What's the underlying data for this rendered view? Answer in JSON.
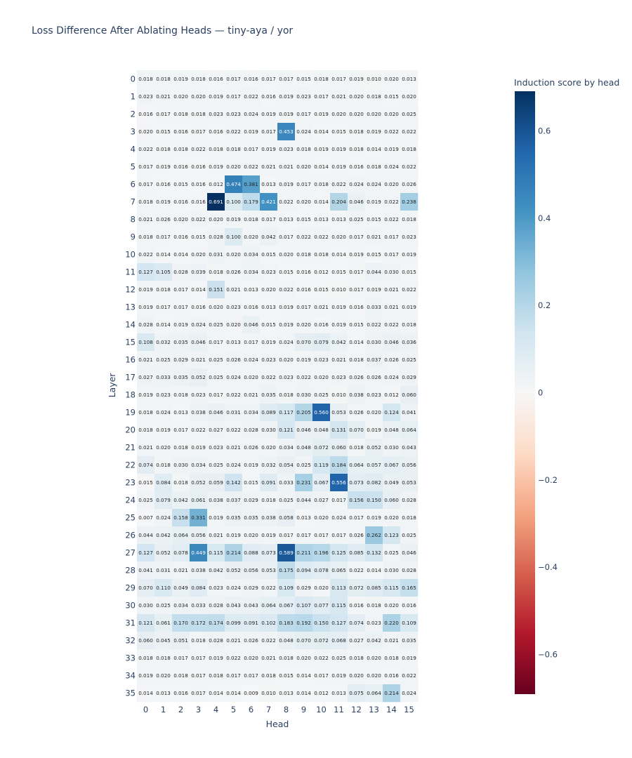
{
  "chart_data": {
    "type": "heatmap",
    "title": "Loss Difference After Ablating Heads — tiny-aya / yor",
    "xlabel": "Head",
    "ylabel": "Layer",
    "colorbar_title": "Induction score by head",
    "colorscale": "RdBu",
    "zmin": -0.691,
    "zmax": 0.691,
    "colorbar_ticks": [
      "0.6",
      "0.4",
      "0.2",
      "0",
      "−0.2",
      "−0.4",
      "−0.6"
    ],
    "colorbar_tick_values": [
      0.6,
      0.4,
      0.2,
      0,
      -0.2,
      -0.4,
      -0.6
    ],
    "x": [
      "0",
      "1",
      "2",
      "3",
      "4",
      "5",
      "6",
      "7",
      "8",
      "9",
      "10",
      "11",
      "12",
      "13",
      "14",
      "15"
    ],
    "y": [
      "0",
      "1",
      "2",
      "3",
      "4",
      "5",
      "6",
      "7",
      "8",
      "9",
      "10",
      "11",
      "12",
      "13",
      "14",
      "15",
      "16",
      "17",
      "18",
      "19",
      "20",
      "21",
      "22",
      "23",
      "24",
      "25",
      "26",
      "27",
      "28",
      "29",
      "30",
      "31",
      "32",
      "33",
      "34",
      "35"
    ],
    "z": [
      [
        0.018,
        0.018,
        0.019,
        0.018,
        0.016,
        0.017,
        0.016,
        0.017,
        0.017,
        0.015,
        0.018,
        0.017,
        0.019,
        0.01,
        0.02,
        0.013
      ],
      [
        0.023,
        0.021,
        0.02,
        0.02,
        0.019,
        0.017,
        0.022,
        0.016,
        0.019,
        0.023,
        0.017,
        0.021,
        0.02,
        0.018,
        0.015,
        0.02
      ],
      [
        0.016,
        0.017,
        0.018,
        0.018,
        0.023,
        0.023,
        0.024,
        0.019,
        0.019,
        0.017,
        0.019,
        0.02,
        0.02,
        0.02,
        0.02,
        0.025
      ],
      [
        0.02,
        0.015,
        0.016,
        0.017,
        0.016,
        0.022,
        0.019,
        0.017,
        0.453,
        0.024,
        0.014,
        0.015,
        0.018,
        0.019,
        0.022,
        0.022
      ],
      [
        0.022,
        0.018,
        0.018,
        0.022,
        0.018,
        0.018,
        0.017,
        0.019,
        0.023,
        0.018,
        0.019,
        0.019,
        0.018,
        0.014,
        0.019,
        0.018
      ],
      [
        0.017,
        0.019,
        0.016,
        0.016,
        0.019,
        0.02,
        0.022,
        0.021,
        0.021,
        0.02,
        0.014,
        0.019,
        0.016,
        0.018,
        0.024,
        0.022
      ],
      [
        0.017,
        0.016,
        0.015,
        0.016,
        0.012,
        0.474,
        0.381,
        0.013,
        0.019,
        0.017,
        0.018,
        0.022,
        0.024,
        0.024,
        0.02,
        0.026
      ],
      [
        0.018,
        0.019,
        0.016,
        0.016,
        0.691,
        0.1,
        0.179,
        0.421,
        0.022,
        0.02,
        0.014,
        0.204,
        0.046,
        0.019,
        0.022,
        0.238
      ],
      [
        0.021,
        0.026,
        0.02,
        0.022,
        0.02,
        0.019,
        0.018,
        0.017,
        0.013,
        0.015,
        0.013,
        0.013,
        0.025,
        0.015,
        0.022,
        0.018
      ],
      [
        0.018,
        0.017,
        0.016,
        0.015,
        0.028,
        0.1,
        0.02,
        0.042,
        0.017,
        0.022,
        0.022,
        0.02,
        0.017,
        0.021,
        0.017,
        0.023
      ],
      [
        0.022,
        0.014,
        0.014,
        0.02,
        0.031,
        0.02,
        0.034,
        0.015,
        0.02,
        0.018,
        0.018,
        0.014,
        0.019,
        0.015,
        0.017,
        0.019
      ],
      [
        0.127,
        0.105,
        0.028,
        0.039,
        0.018,
        0.026,
        0.034,
        0.023,
        0.015,
        0.016,
        0.012,
        0.015,
        0.017,
        0.044,
        0.03,
        0.015
      ],
      [
        0.019,
        0.018,
        0.017,
        0.014,
        0.151,
        0.021,
        0.013,
        0.02,
        0.022,
        0.016,
        0.015,
        0.01,
        0.017,
        0.019,
        0.021,
        0.022
      ],
      [
        0.019,
        0.017,
        0.017,
        0.016,
        0.02,
        0.023,
        0.016,
        0.013,
        0.019,
        0.017,
        0.021,
        0.019,
        0.016,
        0.033,
        0.021,
        0.019
      ],
      [
        0.028,
        0.014,
        0.019,
        0.024,
        0.025,
        0.02,
        0.046,
        0.015,
        0.019,
        0.02,
        0.016,
        0.019,
        0.015,
        0.022,
        0.022,
        0.018
      ],
      [
        0.108,
        0.032,
        0.035,
        0.046,
        0.017,
        0.013,
        0.017,
        0.019,
        0.024,
        0.07,
        0.079,
        0.042,
        0.014,
        0.03,
        0.046,
        0.036
      ],
      [
        0.021,
        0.025,
        0.029,
        0.021,
        0.025,
        0.026,
        0.024,
        0.023,
        0.02,
        0.019,
        0.023,
        0.021,
        0.018,
        0.037,
        0.026,
        0.025
      ],
      [
        0.027,
        0.033,
        0.035,
        0.052,
        0.025,
        0.024,
        0.02,
        0.022,
        0.023,
        0.022,
        0.02,
        0.023,
        0.026,
        0.026,
        0.024,
        0.029
      ],
      [
        0.019,
        0.023,
        0.018,
        0.023,
        0.017,
        0.022,
        0.021,
        0.035,
        0.018,
        0.03,
        0.025,
        0.01,
        0.038,
        0.023,
        0.012,
        0.06
      ],
      [
        0.018,
        0.024,
        0.013,
        0.038,
        0.046,
        0.031,
        0.034,
        0.089,
        0.117,
        0.205,
        0.56,
        0.053,
        0.026,
        0.02,
        0.124,
        0.041
      ],
      [
        0.018,
        0.019,
        0.017,
        0.022,
        0.027,
        0.022,
        0.028,
        0.03,
        0.121,
        0.046,
        0.048,
        0.131,
        0.07,
        0.019,
        0.048,
        0.064
      ],
      [
        0.021,
        0.02,
        0.018,
        0.019,
        0.023,
        0.021,
        0.026,
        0.02,
        0.034,
        0.048,
        0.072,
        0.06,
        0.018,
        0.052,
        0.03,
        0.043
      ],
      [
        0.074,
        0.018,
        0.03,
        0.034,
        0.025,
        0.024,
        0.019,
        0.032,
        0.054,
        0.025,
        0.119,
        0.184,
        0.064,
        0.057,
        0.067,
        0.056
      ],
      [
        0.015,
        0.084,
        0.018,
        0.052,
        0.059,
        0.142,
        0.015,
        0.091,
        0.033,
        0.231,
        0.067,
        0.556,
        0.073,
        0.082,
        0.049,
        0.053
      ],
      [
        0.025,
        0.079,
        0.042,
        0.061,
        0.038,
        0.037,
        0.029,
        0.018,
        0.025,
        0.044,
        0.027,
        0.017,
        0.156,
        0.15,
        0.06,
        0.028
      ],
      [
        0.007,
        0.024,
        0.158,
        0.331,
        0.019,
        0.035,
        0.035,
        0.038,
        0.058,
        0.013,
        0.02,
        0.024,
        0.017,
        0.019,
        0.02,
        0.018
      ],
      [
        0.044,
        0.042,
        0.064,
        0.056,
        0.021,
        0.019,
        0.02,
        0.019,
        0.017,
        0.017,
        0.017,
        0.017,
        0.026,
        0.262,
        0.123,
        0.025
      ],
      [
        0.127,
        0.052,
        0.078,
        0.449,
        0.115,
        0.214,
        0.088,
        0.073,
        0.589,
        0.211,
        0.196,
        0.125,
        0.085,
        0.132,
        0.025,
        0.046
      ],
      [
        0.041,
        0.031,
        0.021,
        0.038,
        0.042,
        0.052,
        0.056,
        0.053,
        0.175,
        0.094,
        0.078,
        0.065,
        0.022,
        0.014,
        0.03,
        0.028
      ],
      [
        0.07,
        0.11,
        0.049,
        0.084,
        0.023,
        0.024,
        0.029,
        0.022,
        0.109,
        0.029,
        0.02,
        0.113,
        0.072,
        0.085,
        0.115,
        0.165
      ],
      [
        0.03,
        0.025,
        0.034,
        0.033,
        0.028,
        0.043,
        0.043,
        0.064,
        0.067,
        0.107,
        0.077,
        0.115,
        0.016,
        0.018,
        0.02,
        0.016
      ],
      [
        0.121,
        0.061,
        0.17,
        0.172,
        0.174,
        0.099,
        0.091,
        0.102,
        0.183,
        0.192,
        0.15,
        0.127,
        0.074,
        0.023,
        0.22,
        0.109
      ],
      [
        0.06,
        0.045,
        0.051,
        0.018,
        0.028,
        0.021,
        0.026,
        0.022,
        0.048,
        0.07,
        0.072,
        0.068,
        0.027,
        0.042,
        0.021,
        0.035
      ],
      [
        0.018,
        0.018,
        0.017,
        0.017,
        0.019,
        0.022,
        0.02,
        0.021,
        0.018,
        0.02,
        0.022,
        0.025,
        0.018,
        0.02,
        0.018,
        0.019
      ],
      [
        0.019,
        0.02,
        0.018,
        0.017,
        0.018,
        0.017,
        0.017,
        0.018,
        0.015,
        0.014,
        0.017,
        0.019,
        0.02,
        0.02,
        0.016,
        0.022
      ],
      [
        0.014,
        0.013,
        0.016,
        0.017,
        0.014,
        0.014,
        0.009,
        0.01,
        0.013,
        0.014,
        0.012,
        0.013,
        0.075,
        0.064,
        0.214,
        0.024
      ]
    ]
  }
}
